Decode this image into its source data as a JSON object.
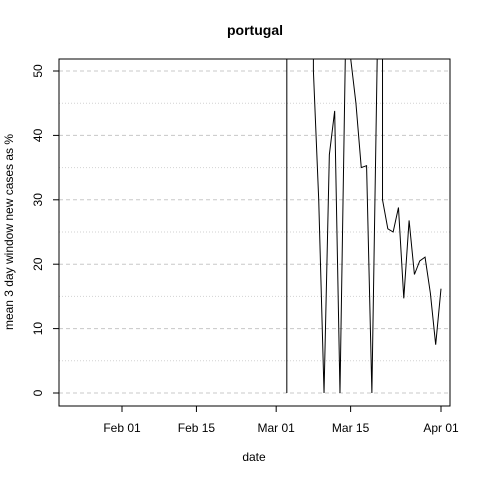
{
  "chart_data": {
    "type": "line",
    "title": "portugal",
    "xlabel": "date",
    "ylabel": "mean  3  day window new cases as %",
    "x_ticks": [
      "Feb 01",
      "Feb 15",
      "Mar 01",
      "Mar 15",
      "Apr 01"
    ],
    "x_tick_dates": [
      "2020-02-01",
      "2020-02-15",
      "2020-03-01",
      "2020-03-15",
      "2020-04-01"
    ],
    "y_ticks": [
      0,
      10,
      20,
      30,
      40,
      50
    ],
    "xlim": [
      "2020-01-20",
      "2020-04-01"
    ],
    "ylim": [
      0,
      52
    ],
    "grid": "dashed horizontal (major) and dotted horizontal (minor)",
    "series": [
      {
        "color": "#000000",
        "points": [
          [
            "2020-03-03",
            0
          ],
          [
            "2020-03-03",
            52
          ],
          [
            "2020-03-08",
            52
          ],
          [
            "2020-03-08",
            50
          ],
          [
            "2020-03-09",
            30
          ],
          [
            "2020-03-10",
            0
          ],
          [
            "2020-03-11",
            37
          ],
          [
            "2020-03-12",
            43.8
          ],
          [
            "2020-03-13",
            0
          ],
          [
            "2020-03-14",
            52
          ],
          [
            "2020-03-15",
            52
          ],
          [
            "2020-03-16",
            45
          ],
          [
            "2020-03-17",
            35
          ],
          [
            "2020-03-18",
            35.3
          ],
          [
            "2020-03-19",
            0
          ],
          [
            "2020-03-20",
            52
          ],
          [
            "2020-03-21",
            52
          ],
          [
            "2020-03-21",
            30
          ],
          [
            "2020-03-22",
            25.5
          ],
          [
            "2020-03-23",
            25
          ],
          [
            "2020-03-24",
            28.8
          ],
          [
            "2020-03-25",
            14.7
          ],
          [
            "2020-03-26",
            26.8
          ],
          [
            "2020-03-27",
            18.4
          ],
          [
            "2020-03-28",
            20.5
          ],
          [
            "2020-03-29",
            21.1
          ],
          [
            "2020-03-30",
            15.5
          ],
          [
            "2020-03-31",
            7.5
          ],
          [
            "2020-04-01",
            16.2
          ]
        ]
      }
    ]
  }
}
